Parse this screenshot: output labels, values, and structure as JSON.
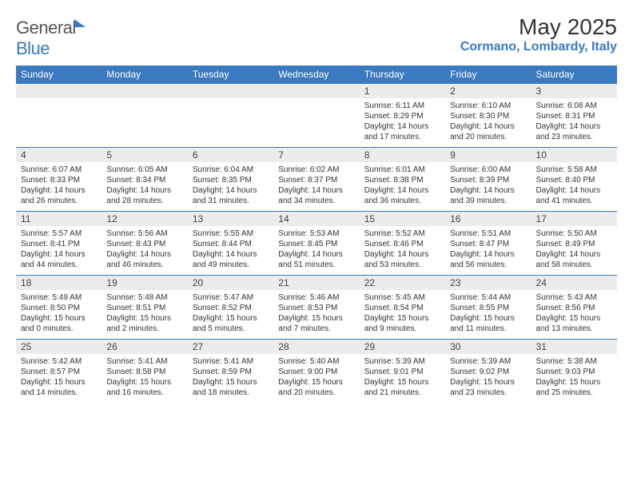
{
  "brand": {
    "textGray": "General",
    "textBlue": "Blue"
  },
  "header": {
    "title": "May 2025",
    "location": "Cormano, Lombardy, Italy"
  },
  "colors": {
    "headerBlue": "#3a7ac0",
    "rowGray": "#ececec",
    "text": "#333333"
  },
  "dayHeaders": [
    "Sunday",
    "Monday",
    "Tuesday",
    "Wednesday",
    "Thursday",
    "Friday",
    "Saturday"
  ],
  "weeks": [
    [
      {
        "n": "",
        "sr": "",
        "ss": "",
        "dl": ""
      },
      {
        "n": "",
        "sr": "",
        "ss": "",
        "dl": ""
      },
      {
        "n": "",
        "sr": "",
        "ss": "",
        "dl": ""
      },
      {
        "n": "",
        "sr": "",
        "ss": "",
        "dl": ""
      },
      {
        "n": "1",
        "sr": "Sunrise: 6:11 AM",
        "ss": "Sunset: 8:29 PM",
        "dl": "Daylight: 14 hours and 17 minutes."
      },
      {
        "n": "2",
        "sr": "Sunrise: 6:10 AM",
        "ss": "Sunset: 8:30 PM",
        "dl": "Daylight: 14 hours and 20 minutes."
      },
      {
        "n": "3",
        "sr": "Sunrise: 6:08 AM",
        "ss": "Sunset: 8:31 PM",
        "dl": "Daylight: 14 hours and 23 minutes."
      }
    ],
    [
      {
        "n": "4",
        "sr": "Sunrise: 6:07 AM",
        "ss": "Sunset: 8:33 PM",
        "dl": "Daylight: 14 hours and 26 minutes."
      },
      {
        "n": "5",
        "sr": "Sunrise: 6:05 AM",
        "ss": "Sunset: 8:34 PM",
        "dl": "Daylight: 14 hours and 28 minutes."
      },
      {
        "n": "6",
        "sr": "Sunrise: 6:04 AM",
        "ss": "Sunset: 8:35 PM",
        "dl": "Daylight: 14 hours and 31 minutes."
      },
      {
        "n": "7",
        "sr": "Sunrise: 6:02 AM",
        "ss": "Sunset: 8:37 PM",
        "dl": "Daylight: 14 hours and 34 minutes."
      },
      {
        "n": "8",
        "sr": "Sunrise: 6:01 AM",
        "ss": "Sunset: 8:38 PM",
        "dl": "Daylight: 14 hours and 36 minutes."
      },
      {
        "n": "9",
        "sr": "Sunrise: 6:00 AM",
        "ss": "Sunset: 8:39 PM",
        "dl": "Daylight: 14 hours and 39 minutes."
      },
      {
        "n": "10",
        "sr": "Sunrise: 5:58 AM",
        "ss": "Sunset: 8:40 PM",
        "dl": "Daylight: 14 hours and 41 minutes."
      }
    ],
    [
      {
        "n": "11",
        "sr": "Sunrise: 5:57 AM",
        "ss": "Sunset: 8:41 PM",
        "dl": "Daylight: 14 hours and 44 minutes."
      },
      {
        "n": "12",
        "sr": "Sunrise: 5:56 AM",
        "ss": "Sunset: 8:43 PM",
        "dl": "Daylight: 14 hours and 46 minutes."
      },
      {
        "n": "13",
        "sr": "Sunrise: 5:55 AM",
        "ss": "Sunset: 8:44 PM",
        "dl": "Daylight: 14 hours and 49 minutes."
      },
      {
        "n": "14",
        "sr": "Sunrise: 5:53 AM",
        "ss": "Sunset: 8:45 PM",
        "dl": "Daylight: 14 hours and 51 minutes."
      },
      {
        "n": "15",
        "sr": "Sunrise: 5:52 AM",
        "ss": "Sunset: 8:46 PM",
        "dl": "Daylight: 14 hours and 53 minutes."
      },
      {
        "n": "16",
        "sr": "Sunrise: 5:51 AM",
        "ss": "Sunset: 8:47 PM",
        "dl": "Daylight: 14 hours and 56 minutes."
      },
      {
        "n": "17",
        "sr": "Sunrise: 5:50 AM",
        "ss": "Sunset: 8:49 PM",
        "dl": "Daylight: 14 hours and 58 minutes."
      }
    ],
    [
      {
        "n": "18",
        "sr": "Sunrise: 5:49 AM",
        "ss": "Sunset: 8:50 PM",
        "dl": "Daylight: 15 hours and 0 minutes."
      },
      {
        "n": "19",
        "sr": "Sunrise: 5:48 AM",
        "ss": "Sunset: 8:51 PM",
        "dl": "Daylight: 15 hours and 2 minutes."
      },
      {
        "n": "20",
        "sr": "Sunrise: 5:47 AM",
        "ss": "Sunset: 8:52 PM",
        "dl": "Daylight: 15 hours and 5 minutes."
      },
      {
        "n": "21",
        "sr": "Sunrise: 5:46 AM",
        "ss": "Sunset: 8:53 PM",
        "dl": "Daylight: 15 hours and 7 minutes."
      },
      {
        "n": "22",
        "sr": "Sunrise: 5:45 AM",
        "ss": "Sunset: 8:54 PM",
        "dl": "Daylight: 15 hours and 9 minutes."
      },
      {
        "n": "23",
        "sr": "Sunrise: 5:44 AM",
        "ss": "Sunset: 8:55 PM",
        "dl": "Daylight: 15 hours and 11 minutes."
      },
      {
        "n": "24",
        "sr": "Sunrise: 5:43 AM",
        "ss": "Sunset: 8:56 PM",
        "dl": "Daylight: 15 hours and 13 minutes."
      }
    ],
    [
      {
        "n": "25",
        "sr": "Sunrise: 5:42 AM",
        "ss": "Sunset: 8:57 PM",
        "dl": "Daylight: 15 hours and 14 minutes."
      },
      {
        "n": "26",
        "sr": "Sunrise: 5:41 AM",
        "ss": "Sunset: 8:58 PM",
        "dl": "Daylight: 15 hours and 16 minutes."
      },
      {
        "n": "27",
        "sr": "Sunrise: 5:41 AM",
        "ss": "Sunset: 8:59 PM",
        "dl": "Daylight: 15 hours and 18 minutes."
      },
      {
        "n": "28",
        "sr": "Sunrise: 5:40 AM",
        "ss": "Sunset: 9:00 PM",
        "dl": "Daylight: 15 hours and 20 minutes."
      },
      {
        "n": "29",
        "sr": "Sunrise: 5:39 AM",
        "ss": "Sunset: 9:01 PM",
        "dl": "Daylight: 15 hours and 21 minutes."
      },
      {
        "n": "30",
        "sr": "Sunrise: 5:39 AM",
        "ss": "Sunset: 9:02 PM",
        "dl": "Daylight: 15 hours and 23 minutes."
      },
      {
        "n": "31",
        "sr": "Sunrise: 5:38 AM",
        "ss": "Sunset: 9:03 PM",
        "dl": "Daylight: 15 hours and 25 minutes."
      }
    ]
  ]
}
